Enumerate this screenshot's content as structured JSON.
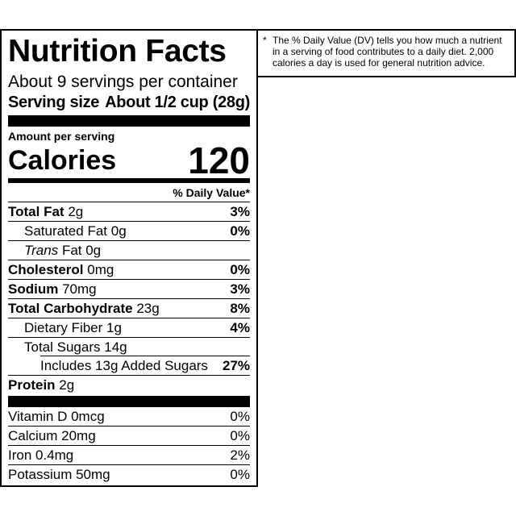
{
  "label": {
    "title": "Nutrition Facts",
    "servings_per_container": "About 9 servings per container",
    "serving_size_label": "Serving size",
    "serving_size_value": "About 1/2 cup (28g)",
    "amount_per_serving": "Amount per serving",
    "calories_label": "Calories",
    "calories_value": "120",
    "dv_header": "% Daily Value*",
    "nutrients": [
      {
        "name": "Total Fat",
        "amount": "2g",
        "dv": "3%"
      },
      {
        "name": "Saturated Fat",
        "amount": "0g",
        "dv": "0%"
      },
      {
        "name": "Trans",
        "amount": "Fat 0g",
        "dv": ""
      },
      {
        "name": "Cholesterol",
        "amount": "0mg",
        "dv": "0%"
      },
      {
        "name": "Sodium",
        "amount": "70mg",
        "dv": "3%"
      },
      {
        "name": "Total Carbohydrate",
        "amount": "23g",
        "dv": "8%"
      },
      {
        "name": "Dietary Fiber",
        "amount": "1g",
        "dv": "4%"
      },
      {
        "name": "Total Sugars",
        "amount": "14g",
        "dv": ""
      },
      {
        "name": "Includes 13g Added Sugars",
        "amount": "",
        "dv": "27%"
      },
      {
        "name": "Protein",
        "amount": "2g",
        "dv": ""
      }
    ],
    "vitamins": [
      {
        "name": "Vitamin D 0mcg",
        "dv": "0%"
      },
      {
        "name": "Calcium 20mg",
        "dv": "0%"
      },
      {
        "name": "Iron 0.4mg",
        "dv": "2%"
      },
      {
        "name": "Potassium 50mg",
        "dv": "0%"
      }
    ]
  },
  "footnote": {
    "star": "*",
    "text": "The % Daily Value (DV) tells you how much a nutrient in a serving of food contributes to a daily diet. 2,000 calories a day is used for general nutrition advice."
  }
}
